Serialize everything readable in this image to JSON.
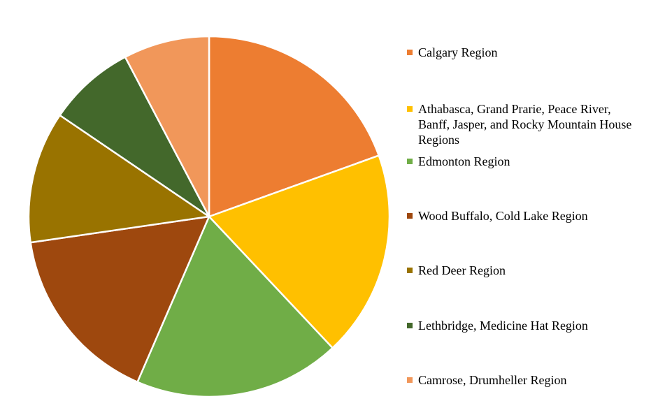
{
  "chart_data": {
    "type": "pie",
    "title": "",
    "start_angle_deg": 0,
    "direction": "clockwise",
    "legend_position": "right",
    "slices": [
      {
        "label": "Calgary Region",
        "value": 19.5,
        "color": "#ED7D31"
      },
      {
        "label": "Athabasca, Grand Prarie, Peace River,\nBanff, Jasper, and Rocky Mountain House\nRegions",
        "value": 18.5,
        "color": "#FFC000"
      },
      {
        "label": "Edmonton Region",
        "value": 18.5,
        "color": "#70AD47"
      },
      {
        "label": "Wood Buffalo, Cold Lake Region",
        "value": 16.2,
        "color": "#9E480E"
      },
      {
        "label": "Red Deer Region",
        "value": 11.8,
        "color": "#997300"
      },
      {
        "label": "Lethbridge, Medicine Hat Region",
        "value": 7.8,
        "color": "#43682B"
      },
      {
        "label": "Camrose, Drumheller Region",
        "value": 7.7,
        "color": "#F1975A"
      }
    ]
  }
}
